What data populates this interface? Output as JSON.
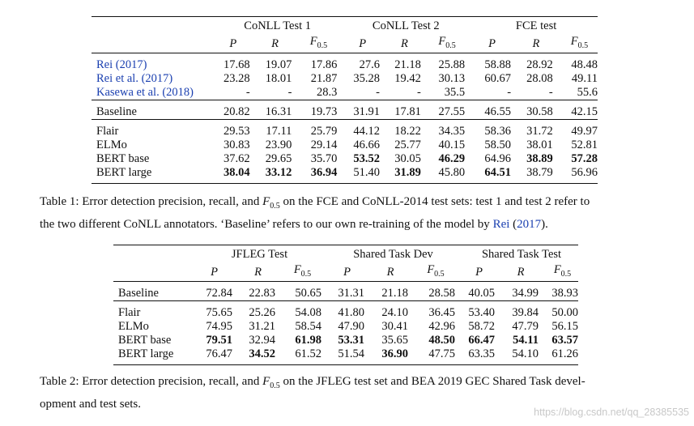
{
  "table1": {
    "groups": [
      "CoNLL Test 1",
      "CoNLL Test 2",
      "FCE test"
    ],
    "metrics": [
      "P",
      "R",
      "F",
      "0.5"
    ],
    "prior_rows": [
      {
        "name": "Rei (2017)",
        "cells": [
          "17.68",
          "19.07",
          "17.86",
          "27.6",
          "21.18",
          "25.88",
          "58.88",
          "28.92",
          "48.48"
        ]
      },
      {
        "name": "Rei et al. (2017)",
        "cells": [
          "23.28",
          "18.01",
          "21.87",
          "35.28",
          "19.42",
          "30.13",
          "60.67",
          "28.08",
          "49.11"
        ]
      },
      {
        "name": "Kasewa et al. (2018)",
        "cells": [
          "-",
          "-",
          "28.3",
          "-",
          "-",
          "35.5",
          "-",
          "-",
          "55.6"
        ]
      }
    ],
    "baseline_row": {
      "name": "Baseline",
      "cells": [
        "20.82",
        "16.31",
        "19.73",
        "31.91",
        "17.81",
        "27.55",
        "46.55",
        "30.58",
        "42.15"
      ]
    },
    "model_rows": [
      {
        "name": "Flair",
        "cells": [
          "29.53",
          "17.11",
          "25.79",
          "44.12",
          "18.22",
          "34.35",
          "58.36",
          "31.72",
          "49.97"
        ]
      },
      {
        "name": "ELMo",
        "cells": [
          "30.83",
          "23.90",
          "29.14",
          "46.66",
          "25.77",
          "40.15",
          "58.50",
          "38.01",
          "52.81"
        ]
      },
      {
        "name": "BERT base",
        "cells": [
          "37.62",
          "29.65",
          "35.70",
          "53.52",
          "30.05",
          "46.29",
          "64.96",
          "38.89",
          "57.28"
        ]
      },
      {
        "name": "BERT large",
        "cells": [
          "38.04",
          "33.12",
          "36.94",
          "51.40",
          "31.89",
          "45.80",
          "64.51",
          "38.79",
          "56.96"
        ]
      }
    ],
    "caption": {
      "label": "Table 1:",
      "text_a": "Error detection precision, recall, and ",
      "f_symbol": "F",
      "f_subscript": "0.5",
      "text_b": " on the FCE and CoNLL-2014 test sets: test 1 and test 2 refer to",
      "text_c": "the two different CoNLL annotators. ‘Baseline’ refers to our own re-training of the model by ",
      "cite_author": "Rei",
      "cite_year_open": " (",
      "cite_year": "2017",
      "cite_year_close": ")",
      "text_d": "."
    }
  },
  "table2": {
    "groups": [
      "JFLEG Test",
      "Shared Task Dev",
      "Shared Task Test"
    ],
    "metrics": [
      "P",
      "R",
      "F",
      "0.5"
    ],
    "baseline_row": {
      "name": "Baseline",
      "cells": [
        "72.84",
        "22.83",
        "50.65",
        "31.31",
        "21.18",
        "28.58",
        "40.05",
        "34.99",
        "38.93"
      ]
    },
    "model_rows": [
      {
        "name": "Flair",
        "cells": [
          "75.65",
          "25.26",
          "54.08",
          "41.80",
          "24.10",
          "36.45",
          "53.40",
          "39.84",
          "50.00"
        ]
      },
      {
        "name": "ELMo",
        "cells": [
          "74.95",
          "31.21",
          "58.54",
          "47.90",
          "30.41",
          "42.96",
          "58.72",
          "47.79",
          "56.15"
        ]
      },
      {
        "name": "BERT base",
        "cells": [
          "79.51",
          "32.94",
          "61.98",
          "53.31",
          "35.65",
          "48.50",
          "66.47",
          "54.11",
          "63.57"
        ]
      },
      {
        "name": "BERT large",
        "cells": [
          "76.47",
          "34.52",
          "61.52",
          "51.54",
          "36.90",
          "47.75",
          "63.35",
          "54.10",
          "61.26"
        ]
      }
    ],
    "caption": {
      "label": "Table 2:",
      "text_a": "Error detection precision, recall, and ",
      "f_symbol": "F",
      "f_subscript": "0.5",
      "text_b": " on the JFLEG test set and BEA 2019 GEC Shared Task devel-",
      "text_c": "opment and test sets."
    }
  },
  "watermark": "https://blog.csdn.net/qq_28385535"
}
